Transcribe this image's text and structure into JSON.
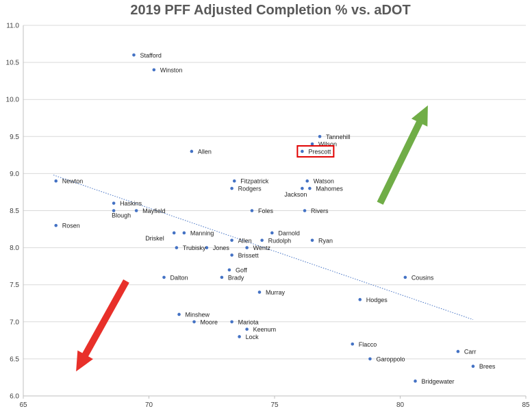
{
  "chart_data": {
    "type": "scatter",
    "title": "2019 PFF Adjusted Completion % vs. aDOT",
    "xlabel": "",
    "ylabel": "",
    "xlim": [
      65,
      85
    ],
    "ylim": [
      6.0,
      11.0
    ],
    "x_ticks": [
      "65",
      "70",
      "75",
      "80",
      "85"
    ],
    "y_ticks": [
      "6.0",
      "6.5",
      "7.0",
      "7.5",
      "8.0",
      "8.5",
      "9.0",
      "9.5",
      "10.0",
      "10.5",
      "11.0"
    ],
    "grid": "horizontal",
    "marker_color": "#4472c4",
    "trendline": {
      "style": "dotted",
      "color": "#4472c4",
      "from": [
        66.2,
        8.98
      ],
      "to": [
        82.9,
        7.03
      ]
    },
    "highlight": {
      "label": "Prescott",
      "box_color": "#e00000"
    },
    "arrows": [
      {
        "direction": "up-right",
        "color": "#70ad47"
      },
      {
        "direction": "down-left",
        "color": "#e8302a"
      }
    ],
    "points": [
      {
        "label": "Stafford",
        "x": 69.4,
        "y": 10.6
      },
      {
        "label": "Winston",
        "x": 70.2,
        "y": 10.4
      },
      {
        "label": "Tannehill",
        "x": 76.8,
        "y": 9.5
      },
      {
        "label": "Wilson",
        "x": 76.5,
        "y": 9.4
      },
      {
        "label": "Prescott",
        "x": 76.1,
        "y": 9.3
      },
      {
        "label": "Allen",
        "x": 71.7,
        "y": 9.3
      },
      {
        "label": "Newton",
        "x": 66.3,
        "y": 8.9
      },
      {
        "label": "Fitzpatrick",
        "x": 73.4,
        "y": 8.9
      },
      {
        "label": "Watson",
        "x": 76.3,
        "y": 8.9
      },
      {
        "label": "Rodgers",
        "x": 73.3,
        "y": 8.8
      },
      {
        "label": "Mahomes",
        "x": 76.4,
        "y": 8.8
      },
      {
        "label": "Jackson",
        "x": 76.1,
        "y": 8.8
      },
      {
        "label": "Haskins",
        "x": 68.6,
        "y": 8.6
      },
      {
        "label": "Blough",
        "x": 68.6,
        "y": 8.5
      },
      {
        "label": "Mayfield",
        "x": 69.5,
        "y": 8.5
      },
      {
        "label": "Foles",
        "x": 74.1,
        "y": 8.5
      },
      {
        "label": "Rivers",
        "x": 76.2,
        "y": 8.5
      },
      {
        "label": "Rosen",
        "x": 66.3,
        "y": 8.3
      },
      {
        "label": "Driskel",
        "x": 71.0,
        "y": 8.2
      },
      {
        "label": "Manning",
        "x": 71.4,
        "y": 8.2
      },
      {
        "label": "Darnold",
        "x": 74.9,
        "y": 8.2
      },
      {
        "label": "Allen",
        "x": 73.3,
        "y": 8.1
      },
      {
        "label": "Rudolph",
        "x": 74.5,
        "y": 8.1
      },
      {
        "label": "Ryan",
        "x": 76.5,
        "y": 8.1
      },
      {
        "label": "Trubisky",
        "x": 71.1,
        "y": 8.0
      },
      {
        "label": "Jones",
        "x": 72.3,
        "y": 8.0
      },
      {
        "label": "Wentz",
        "x": 73.9,
        "y": 8.0
      },
      {
        "label": "Brissett",
        "x": 73.3,
        "y": 7.9
      },
      {
        "label": "Goff",
        "x": 73.2,
        "y": 7.7
      },
      {
        "label": "Dalton",
        "x": 70.6,
        "y": 7.6
      },
      {
        "label": "Brady",
        "x": 72.9,
        "y": 7.6
      },
      {
        "label": "Cousins",
        "x": 80.2,
        "y": 7.6
      },
      {
        "label": "Murray",
        "x": 74.4,
        "y": 7.4
      },
      {
        "label": "Hodges",
        "x": 78.4,
        "y": 7.3
      },
      {
        "label": "Minshew",
        "x": 71.2,
        "y": 7.1
      },
      {
        "label": "Moore",
        "x": 71.8,
        "y": 7.0
      },
      {
        "label": "Mariota",
        "x": 73.3,
        "y": 7.0
      },
      {
        "label": "Keenum",
        "x": 73.9,
        "y": 6.9
      },
      {
        "label": "Lock",
        "x": 73.6,
        "y": 6.8
      },
      {
        "label": "Flacco",
        "x": 78.1,
        "y": 6.7
      },
      {
        "label": "Carr",
        "x": 82.3,
        "y": 6.6
      },
      {
        "label": "Garoppolo",
        "x": 78.8,
        "y": 6.5
      },
      {
        "label": "Brees",
        "x": 82.9,
        "y": 6.4
      },
      {
        "label": "Bridgewater",
        "x": 80.6,
        "y": 6.2
      }
    ]
  }
}
